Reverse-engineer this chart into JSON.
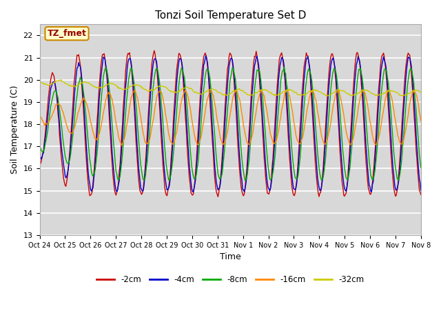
{
  "title": "Tonzi Soil Temperature Set D",
  "xlabel": "Time",
  "ylabel": "Soil Temperature (C)",
  "ylim": [
    13.0,
    22.5
  ],
  "yticks": [
    13.0,
    14.0,
    15.0,
    16.0,
    17.0,
    18.0,
    19.0,
    20.0,
    21.0,
    22.0
  ],
  "xtick_labels": [
    "Oct 24",
    "Oct 25",
    "Oct 26",
    "Oct 27",
    "Oct 28",
    "Oct 29",
    "Oct 30",
    "Oct 31",
    "Nov 1",
    "Nov 2",
    "Nov 3",
    "Nov 4",
    "Nov 5",
    "Nov 6",
    "Nov 7",
    "Nov 8"
  ],
  "colors": {
    "-2cm": "#cc0000",
    "-4cm": "#0000cc",
    "-8cm": "#00aa00",
    "-16cm": "#ff8800",
    "-32cm": "#cccc00"
  },
  "legend_label": "TZ_fmet",
  "legend_bg": "#ffffcc",
  "legend_border": "#cc8800",
  "fig_bg": "#ffffff",
  "plot_bg": "#d8d8d8",
  "grid_color": "#ffffff",
  "num_points": 480
}
